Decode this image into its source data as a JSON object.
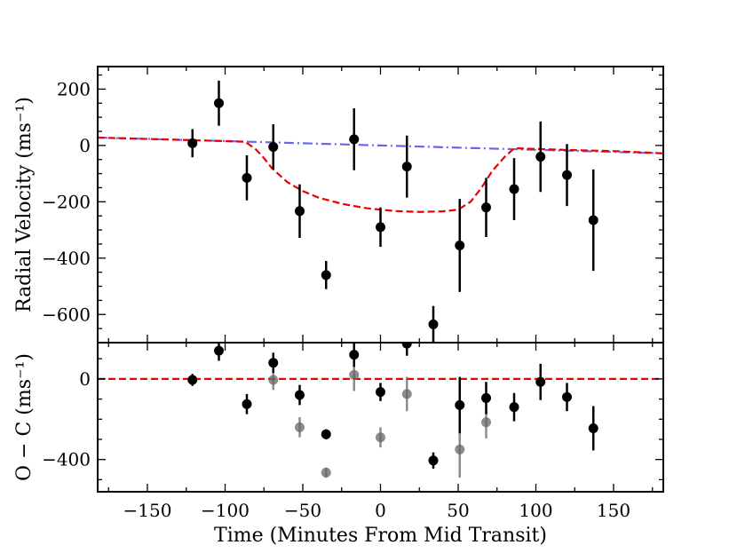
{
  "chart_data": {
    "type": "scatter",
    "xlabel": "Time (Minutes From Mid Transit)",
    "xlim": [
      -182,
      182
    ],
    "xticks": [
      -150,
      -100,
      -50,
      0,
      50,
      100,
      150
    ],
    "xtick_labels": [
      "−150",
      "−100",
      "−50",
      "0",
      "50",
      "100",
      "150"
    ],
    "top_panel": {
      "ylabel": "Radial Velocity (ms⁻¹)",
      "ylim": [
        -700,
        280
      ],
      "yticks": [
        200,
        0,
        -200,
        -400,
        -600
      ],
      "ytick_labels": [
        "200",
        "0",
        "−200",
        "−400",
        "−600"
      ],
      "observations": {
        "name": "RV data",
        "x": [
          -121,
          -104,
          -86,
          -69,
          -52,
          -35,
          -17,
          0,
          17,
          34,
          51,
          68,
          86,
          103,
          120,
          137
        ],
        "y": [
          8,
          150,
          -115,
          -5,
          -233,
          -460,
          22,
          -290,
          -75,
          -635,
          -355,
          -220,
          -155,
          -40,
          -105,
          -265
        ],
        "yerr": [
          50,
          80,
          80,
          80,
          95,
          50,
          110,
          70,
          110,
          65,
          165,
          105,
          110,
          125,
          110,
          180
        ]
      },
      "keplerian_model": {
        "name": "Keplerian orbit",
        "style": "dash-dot",
        "color": "#6666ee",
        "x": [
          -182,
          -90,
          0,
          90,
          182
        ],
        "y": [
          28,
          14,
          0,
          -14,
          -28
        ]
      },
      "rm_model": {
        "name": "Rossiter-McLaughlin model",
        "style": "dashed",
        "color": "#ee0000",
        "x": [
          -182,
          -150,
          -110,
          -87,
          -80,
          -75,
          -70,
          -60,
          -50,
          -40,
          -25,
          -10,
          0,
          10,
          25,
          40,
          50,
          58,
          65,
          72,
          80,
          86,
          120,
          150,
          182
        ],
        "y": [
          28,
          23,
          17,
          13,
          -15,
          -45,
          -80,
          -130,
          -162,
          -185,
          -207,
          -222,
          -228,
          -233,
          -236,
          -234,
          -228,
          -200,
          -150,
          -90,
          -40,
          -10,
          -16,
          -20,
          -28
        ]
      }
    },
    "bottom_panel": {
      "ylabel": "O − C (ms⁻¹)",
      "ylim": [
        -560,
        180
      ],
      "yticks": [
        0,
        -400
      ],
      "ytick_labels": [
        "0",
        "−400"
      ],
      "residuals": {
        "name": "Residuals (O − C)",
        "x": [
          -121,
          -104,
          -86,
          -69,
          -52,
          -35,
          -17,
          0,
          17,
          34,
          51,
          68,
          86,
          103,
          120,
          137
        ],
        "y": [
          -5,
          140,
          -125,
          80,
          -80,
          -275,
          120,
          -65,
          175,
          -405,
          -130,
          -95,
          -140,
          -15,
          -90,
          -245
        ],
        "yerr": [
          30,
          50,
          50,
          50,
          50,
          25,
          60,
          45,
          60,
          40,
          140,
          80,
          70,
          90,
          70,
          110
        ]
      },
      "raw_overlay": {
        "name": "Data without model (grey)",
        "color": "#666666",
        "x": [
          -69,
          -52,
          -35,
          -17,
          0,
          17,
          34,
          51,
          68
        ],
        "y": [
          -5,
          -240,
          -465,
          20,
          -290,
          -75,
          -630,
          -350,
          -215
        ],
        "yerr": [
          50,
          50,
          25,
          80,
          50,
          85,
          30,
          140,
          80
        ]
      },
      "zero_line": {
        "name": "zero residual",
        "style": "dashed",
        "color": "#ee0000",
        "y": 0
      }
    }
  }
}
